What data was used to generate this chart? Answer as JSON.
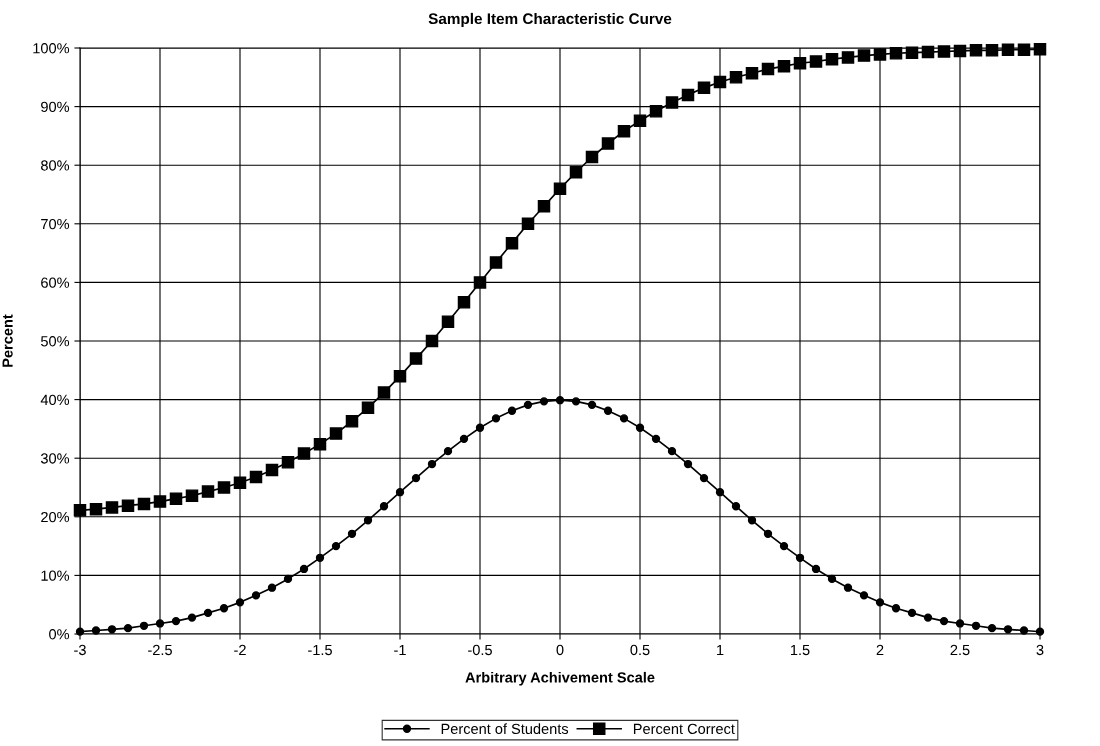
{
  "chart_data": {
    "type": "line",
    "title": "Sample Item Characteristic Curve",
    "xlabel": "Arbitrary Achivement Scale",
    "ylabel": "Percent",
    "x": [
      -3,
      -2.9,
      -2.8,
      -2.7,
      -2.6,
      -2.5,
      -2.4,
      -2.3,
      -2.2,
      -2.1,
      -2,
      -1.9,
      -1.8,
      -1.7,
      -1.6,
      -1.5,
      -1.4,
      -1.3,
      -1.2,
      -1.1,
      -1,
      -0.9,
      -0.8,
      -0.7,
      -0.6,
      -0.5,
      -0.4,
      -0.3,
      -0.2,
      -0.1,
      0,
      0.1,
      0.2,
      0.3,
      0.4,
      0.5,
      0.6,
      0.7,
      0.8,
      0.9,
      1,
      1.1,
      1.2,
      1.3,
      1.4,
      1.5,
      1.6,
      1.7,
      1.8,
      1.9,
      2,
      2.1,
      2.2,
      2.3,
      2.4,
      2.5,
      2.6,
      2.7,
      2.8,
      2.9,
      3
    ],
    "series": [
      {
        "name": "Percent of Students",
        "color": "#000000",
        "marker": "circle",
        "values": [
          0.4,
          0.6,
          0.8,
          1.0,
          1.4,
          1.8,
          2.2,
          2.8,
          3.6,
          4.4,
          5.4,
          6.6,
          7.9,
          9.4,
          11.1,
          13.0,
          15.0,
          17.1,
          19.4,
          21.8,
          24.2,
          26.6,
          29.0,
          31.2,
          33.3,
          35.2,
          36.8,
          38.1,
          39.1,
          39.7,
          39.9,
          39.7,
          39.1,
          38.1,
          36.8,
          35.2,
          33.3,
          31.2,
          29.0,
          26.6,
          24.2,
          21.8,
          19.4,
          17.1,
          15.0,
          13.0,
          11.1,
          9.4,
          7.9,
          6.6,
          5.4,
          4.4,
          3.6,
          2.8,
          2.2,
          1.8,
          1.4,
          1.0,
          0.8,
          0.6,
          0.4
        ]
      },
      {
        "name": "Percent Correct",
        "color": "#000000",
        "marker": "square",
        "values": [
          21.1,
          21.3,
          21.6,
          21.9,
          22.2,
          22.6,
          23.1,
          23.6,
          24.3,
          25.0,
          25.8,
          26.8,
          28.0,
          29.3,
          30.8,
          32.4,
          34.2,
          36.3,
          38.6,
          41.2,
          44.0,
          47.0,
          50.0,
          53.3,
          56.6,
          60.0,
          63.4,
          66.7,
          70.0,
          73.0,
          76.0,
          78.8,
          81.4,
          83.7,
          85.8,
          87.6,
          89.2,
          90.7,
          92.0,
          93.2,
          94.2,
          95.0,
          95.7,
          96.4,
          96.9,
          97.4,
          97.7,
          98.1,
          98.4,
          98.7,
          98.9,
          99.1,
          99.2,
          99.3,
          99.4,
          99.5,
          99.6,
          99.6,
          99.7,
          99.7,
          99.8
        ]
      }
    ],
    "xlim": [
      -3,
      3
    ],
    "xticks": [
      -3,
      -2.5,
      -2,
      -1.5,
      -1,
      -0.5,
      0,
      0.5,
      1,
      1.5,
      2,
      2.5,
      3
    ],
    "ylim": [
      0,
      100
    ],
    "yticks": [
      {
        "value": 0,
        "label": "0%"
      },
      {
        "value": 10,
        "label": "10%"
      },
      {
        "value": 20,
        "label": "20%"
      },
      {
        "value": 30,
        "label": "30%"
      },
      {
        "value": 40,
        "label": "40%"
      },
      {
        "value": 50,
        "label": "50%"
      },
      {
        "value": 60,
        "label": "60%"
      },
      {
        "value": 70,
        "label": "70%"
      },
      {
        "value": 80,
        "label": "80%"
      },
      {
        "value": 90,
        "label": "90%"
      },
      {
        "value": 100,
        "label": "100%"
      }
    ],
    "grid": true,
    "legend": "bottom",
    "line_style": "solid"
  }
}
